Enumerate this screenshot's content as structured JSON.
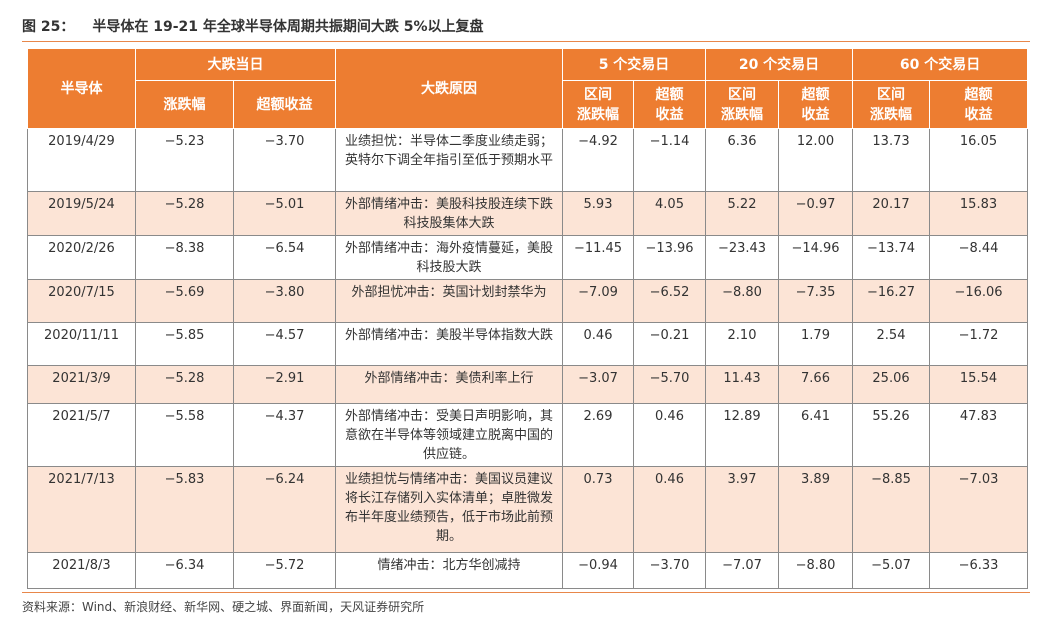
{
  "caption": {
    "figure_no": "图 25：",
    "title": "半导体在 19-21 年全球半导体周期共振期间大跌 5%以上复盘"
  },
  "headers": {
    "semiconductor": "半导体",
    "drop_day": "大跌当日",
    "change": "涨跌幅",
    "excess": "超额收益",
    "reason": "大跌原因",
    "d5": "5 个交易日",
    "d20": "20 个交易日",
    "d60": "60 个交易日",
    "interval_change_1": "区间",
    "interval_change_2": "涨跌幅",
    "excess_1": "超额",
    "excess_2": "收益"
  },
  "rows": [
    {
      "date": "2019/4/29",
      "change": "−5.23",
      "excess": "−3.70",
      "reason": "业绩担忧：半导体二季度业绩走弱；英特尔下调全年指引至低于预期水平",
      "d5_change": "−4.92",
      "d5_excess": "−1.14",
      "d20_change": "6.36",
      "d20_excess": "12.00",
      "d60_change": "13.73",
      "d60_excess": "16.05"
    },
    {
      "date": "2019/5/24",
      "change": "−5.28",
      "excess": "−5.01",
      "reason": "外部情绪冲击：美股科技股连续下跌科技股集体大跌",
      "d5_change": "5.93",
      "d5_excess": "4.05",
      "d20_change": "5.22",
      "d20_excess": "−0.97",
      "d60_change": "20.17",
      "d60_excess": "15.83"
    },
    {
      "date": "2020/2/26",
      "change": "−8.38",
      "excess": "−6.54",
      "reason": "外部情绪冲击：海外疫情蔓延，美股科技股大跌",
      "d5_change": "−11.45",
      "d5_excess": "−13.96",
      "d20_change": "−23.43",
      "d20_excess": "−14.96",
      "d60_change": "−13.74",
      "d60_excess": "−8.44"
    },
    {
      "date": "2020/7/15",
      "change": "−5.69",
      "excess": "−3.80",
      "reason": "外部担忧冲击：英国计划封禁华为",
      "d5_change": "−7.09",
      "d5_excess": "−6.52",
      "d20_change": "−8.80",
      "d20_excess": "−7.35",
      "d60_change": "−16.27",
      "d60_excess": "−16.06"
    },
    {
      "date": "2020/11/11",
      "change": "−5.85",
      "excess": "−4.57",
      "reason": "外部情绪冲击：美股半导体指数大跌",
      "d5_change": "0.46",
      "d5_excess": "−0.21",
      "d20_change": "2.10",
      "d20_excess": "1.79",
      "d60_change": "2.54",
      "d60_excess": "−1.72"
    },
    {
      "date": "2021/3/9",
      "change": "−5.28",
      "excess": "−2.91",
      "reason": "外部情绪冲击：美债利率上行",
      "d5_change": "−3.07",
      "d5_excess": "−5.70",
      "d20_change": "11.43",
      "d20_excess": "7.66",
      "d60_change": "25.06",
      "d60_excess": "15.54"
    },
    {
      "date": "2021/5/7",
      "change": "−5.58",
      "excess": "−4.37",
      "reason": "外部情绪冲击：受美日声明影响，其意欲在半导体等领域建立脱离中国的供应链。",
      "d5_change": "2.69",
      "d5_excess": "0.46",
      "d20_change": "12.89",
      "d20_excess": "6.41",
      "d60_change": "55.26",
      "d60_excess": "47.83"
    },
    {
      "date": "2021/7/13",
      "change": "−5.83",
      "excess": "−6.24",
      "reason": "业绩担忧与情绪冲击：美国议员建议将长江存储列入实体清单；卓胜微发布半年度业绩预告，低于市场此前预期。",
      "d5_change": "0.73",
      "d5_excess": "0.46",
      "d20_change": "3.97",
      "d20_excess": "3.89",
      "d60_change": "−8.85",
      "d60_excess": "−7.03"
    },
    {
      "date": "2021/8/3",
      "change": "−6.34",
      "excess": "−5.72",
      "reason": "情绪冲击：北方华创减持",
      "d5_change": "−0.94",
      "d5_excess": "−3.70",
      "d20_change": "−7.07",
      "d20_excess": "−8.80",
      "d60_change": "−5.07",
      "d60_excess": "−6.33"
    }
  ],
  "source": "资料来源：Wind、新浪财经、新华网、硬之城、界面新闻，天风证券研究所",
  "colors": {
    "header_bg": "#ed7d31",
    "shade_bg": "#fce4d6",
    "rule": "#e8874a"
  }
}
